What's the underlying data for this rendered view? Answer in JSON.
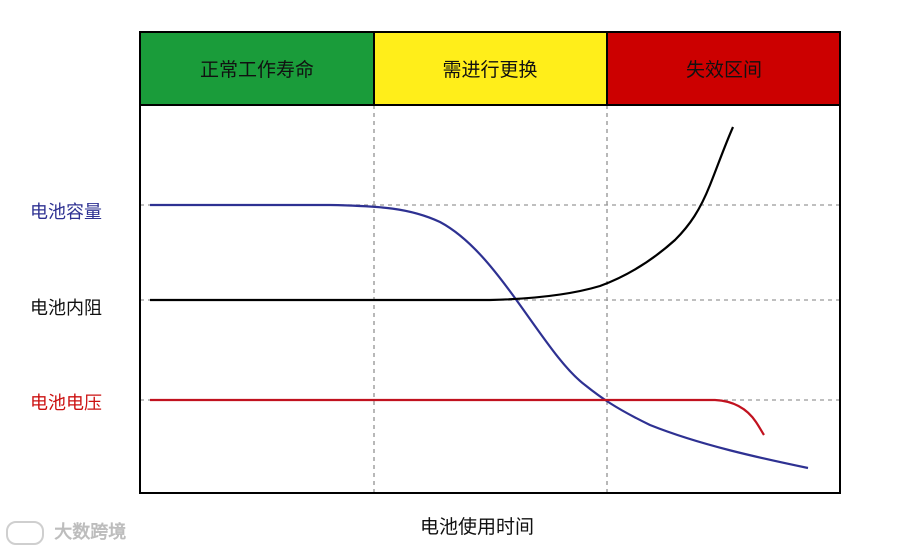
{
  "zones": [
    {
      "label": "正常工作寿命",
      "color": "#1a9c3a"
    },
    {
      "label": "需进行更换",
      "color": "#ffee1a"
    },
    {
      "label": "失效区间",
      "color": "#cc0000"
    }
  ],
  "y_labels": {
    "capacity": "电池容量",
    "resistance": "电池内阻",
    "voltage": "电池电压"
  },
  "x_label": "电池使用时间",
  "series_colors": {
    "capacity": "#2e3192",
    "resistance": "#000000",
    "voltage": "#c1121f"
  },
  "watermark": "大数跨境"
}
